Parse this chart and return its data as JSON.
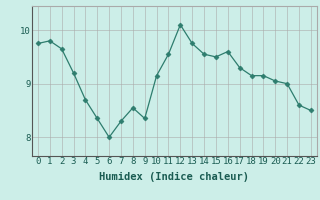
{
  "x": [
    0,
    1,
    2,
    3,
    4,
    5,
    6,
    7,
    8,
    9,
    10,
    11,
    12,
    13,
    14,
    15,
    16,
    17,
    18,
    19,
    20,
    21,
    22,
    23
  ],
  "y": [
    9.75,
    9.8,
    9.65,
    9.2,
    8.7,
    8.35,
    8.0,
    8.3,
    8.55,
    8.35,
    9.15,
    9.55,
    10.1,
    9.75,
    9.55,
    9.5,
    9.6,
    9.3,
    9.15,
    9.15,
    9.05,
    9.0,
    8.6,
    8.5
  ],
  "xlabel": "Humidex (Indice chaleur)",
  "xlim": [
    -0.5,
    23.5
  ],
  "ylim": [
    7.65,
    10.45
  ],
  "yticks": [
    8,
    9,
    10
  ],
  "xticks": [
    0,
    1,
    2,
    3,
    4,
    5,
    6,
    7,
    8,
    9,
    10,
    11,
    12,
    13,
    14,
    15,
    16,
    17,
    18,
    19,
    20,
    21,
    22,
    23
  ],
  "line_color": "#2e7d6e",
  "marker_color": "#2e7d6e",
  "bg_color": "#cceee8",
  "grid_color": "#aaaaaa",
  "tick_label_color": "#1a5c52",
  "axis_label_color": "#1a5c52",
  "tick_fontsize": 6.5,
  "xlabel_fontsize": 7.5
}
